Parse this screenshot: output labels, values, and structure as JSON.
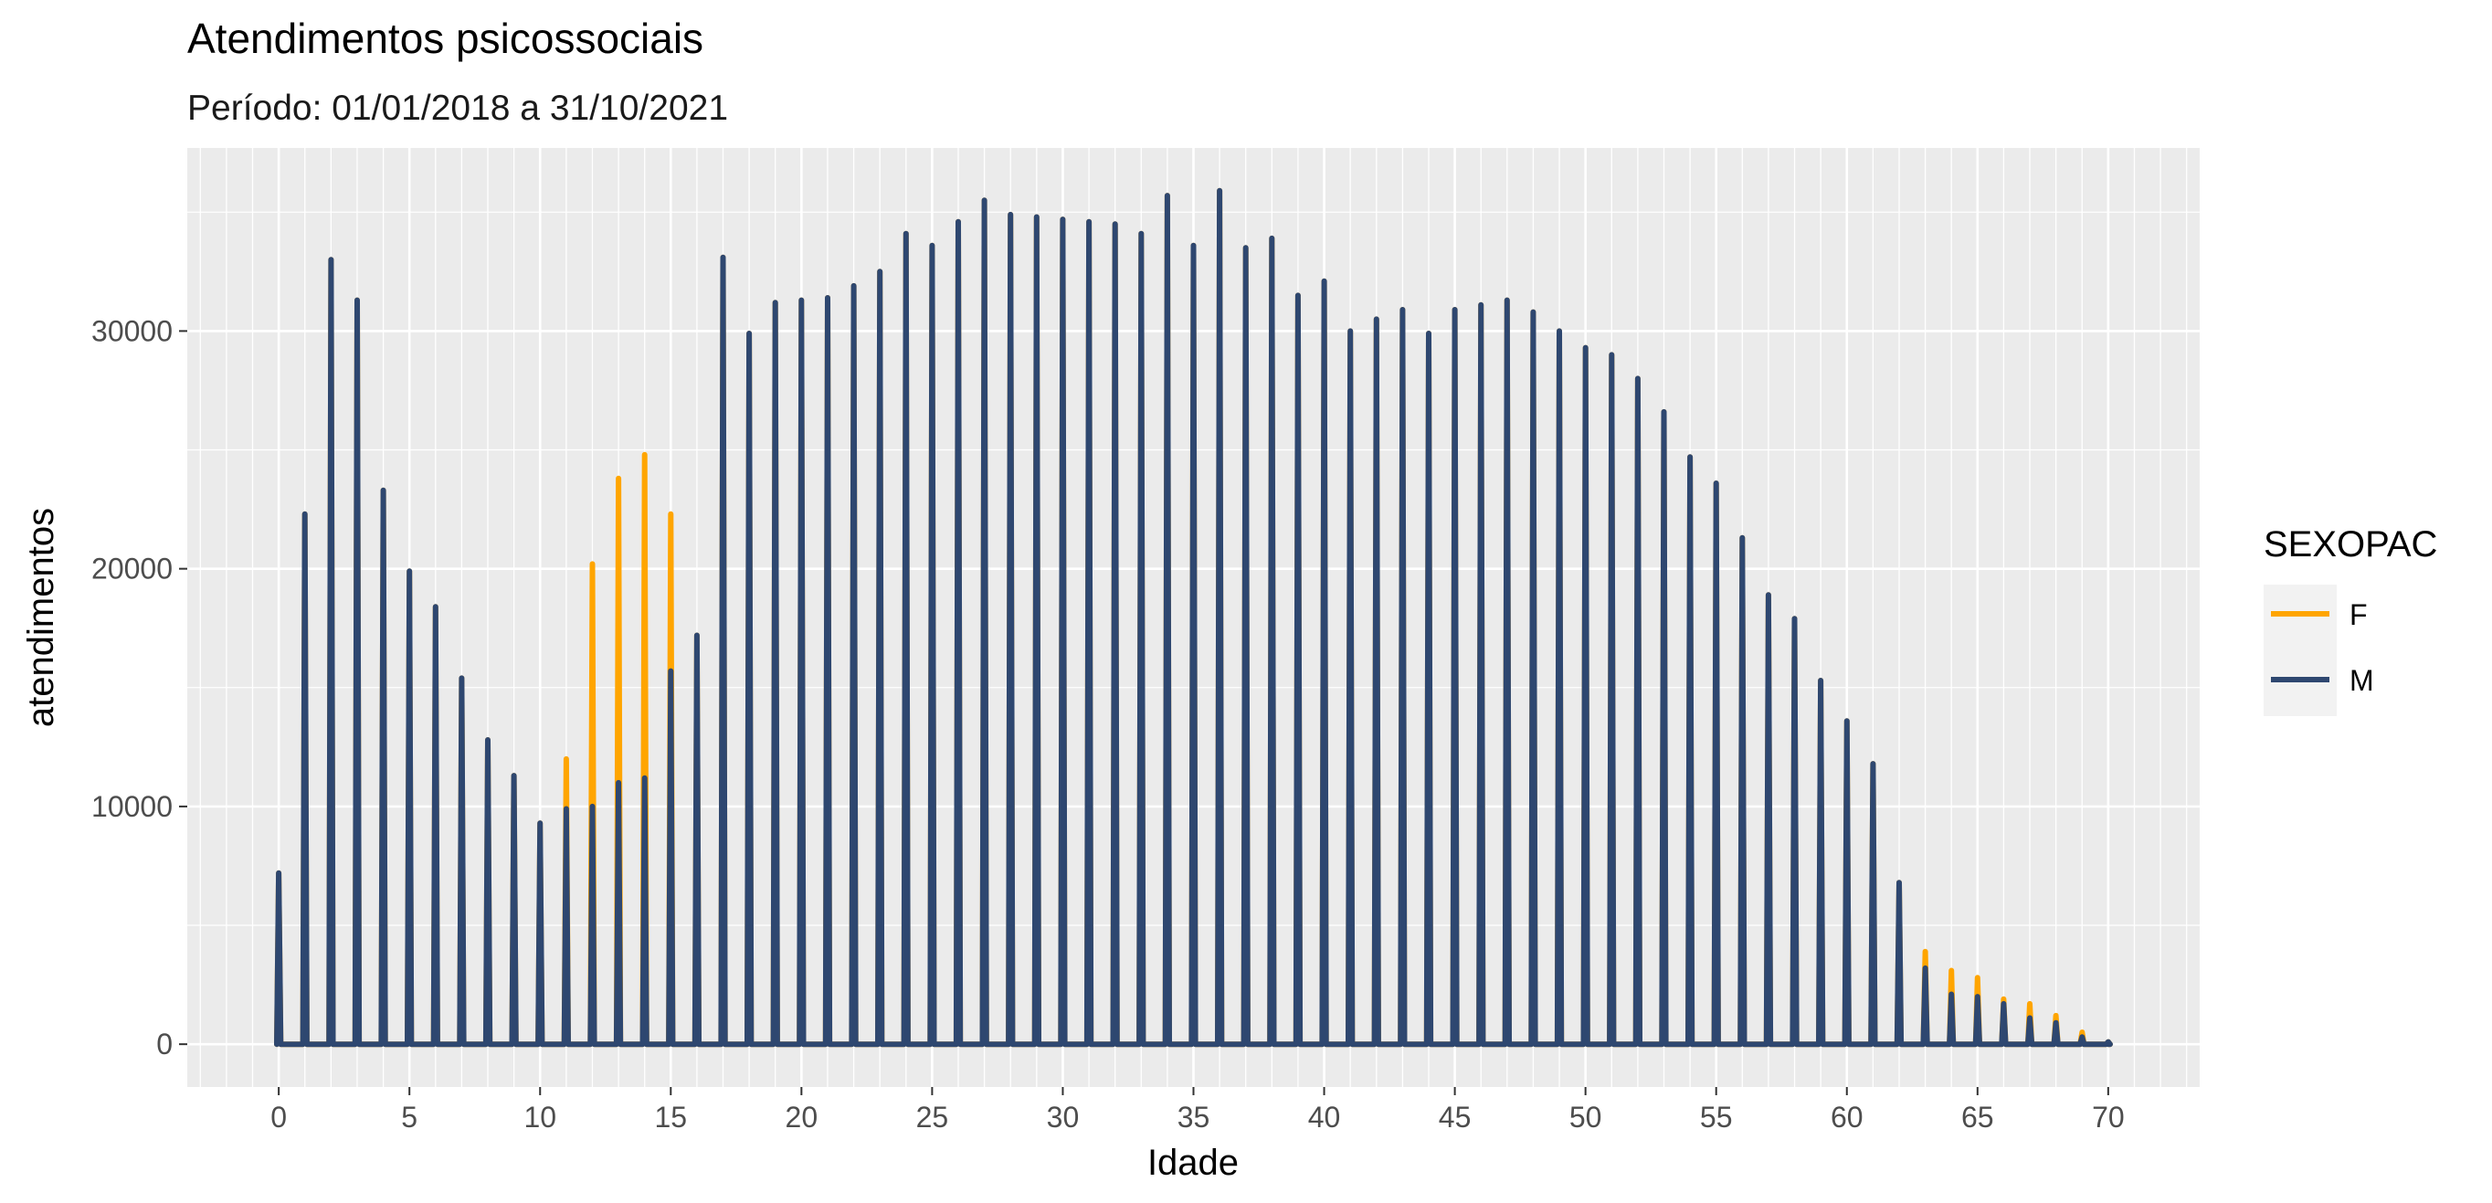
{
  "chart_data": {
    "type": "line",
    "title": "Atendimentos psicossociais",
    "subtitle": "Período: 01/01/2018 a 31/10/2021",
    "xlabel": "Idade",
    "ylabel": "atendimentos",
    "xlim": [
      -3.5,
      73.5
    ],
    "ylim": [
      -1800,
      37700
    ],
    "x_ticks": [
      0,
      5,
      10,
      15,
      20,
      25,
      30,
      35,
      40,
      45,
      50,
      55,
      60,
      65,
      70
    ],
    "y_ticks": [
      0,
      10000,
      20000,
      30000
    ],
    "grid": true,
    "legend": {
      "title": "SEXOPAC",
      "position": "right"
    },
    "ages": [
      0,
      1,
      2,
      3,
      4,
      5,
      6,
      7,
      8,
      9,
      10,
      11,
      12,
      13,
      14,
      15,
      16,
      17,
      18,
      19,
      20,
      21,
      22,
      23,
      24,
      25,
      26,
      27,
      28,
      29,
      30,
      31,
      32,
      33,
      34,
      35,
      36,
      37,
      38,
      39,
      40,
      41,
      42,
      43,
      44,
      45,
      46,
      47,
      48,
      49,
      50,
      51,
      52,
      53,
      54,
      55,
      56,
      57,
      58,
      59,
      60,
      61,
      62,
      63,
      64,
      65,
      66,
      67,
      68,
      69,
      70
    ],
    "series": [
      {
        "name": "F",
        "color": "#FFA500",
        "peaks": [
          7200,
          22300,
          33000,
          31300,
          23300,
          19900,
          18400,
          15400,
          12800,
          11300,
          9300,
          12000,
          20200,
          23800,
          24800,
          22300,
          17200,
          33100,
          29900,
          31200,
          31300,
          31400,
          31900,
          32500,
          34100,
          33600,
          34600,
          35500,
          34900,
          34800,
          34700,
          34600,
          34500,
          34100,
          35700,
          33600,
          35900,
          33500,
          33900,
          31500,
          32100,
          30000,
          30500,
          30900,
          29900,
          30900,
          31100,
          31300,
          30800,
          30000,
          29300,
          29000,
          28000,
          26600,
          24700,
          23600,
          21300,
          18900,
          17900,
          15300,
          13600,
          11800,
          6800,
          3900,
          3100,
          2800,
          1900,
          1700,
          1200,
          500,
          100
        ]
      },
      {
        "name": "M",
        "color": "#2E4770",
        "peaks": [
          7200,
          22300,
          33000,
          31300,
          23300,
          19900,
          18400,
          15400,
          12800,
          11300,
          9300,
          9900,
          10000,
          11000,
          11200,
          15700,
          17200,
          33100,
          29900,
          31200,
          31300,
          31400,
          31900,
          32500,
          34100,
          33600,
          34600,
          35500,
          34900,
          34800,
          34700,
          34600,
          34500,
          34100,
          35700,
          33600,
          35900,
          33500,
          33900,
          31500,
          32100,
          30000,
          30500,
          30900,
          29900,
          30900,
          31100,
          31300,
          30800,
          30000,
          29300,
          29000,
          28000,
          26600,
          24700,
          23600,
          21300,
          18900,
          17900,
          15300,
          13600,
          11800,
          6800,
          3200,
          2100,
          2000,
          1700,
          1100,
          900,
          300,
          100
        ]
      }
    ]
  }
}
